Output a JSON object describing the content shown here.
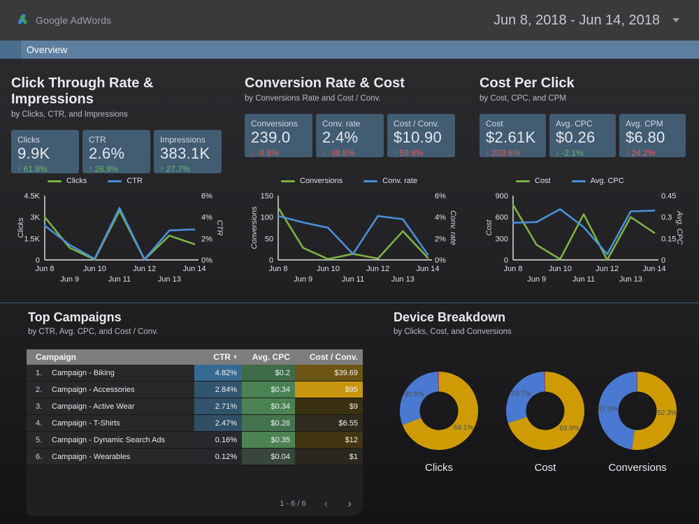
{
  "header": {
    "logo_text": "Google AdWords",
    "date_range": "Jun 8, 2018 - Jun 14, 2018"
  },
  "nav": {
    "tab": "Overview"
  },
  "sections": [
    {
      "title": "Click Through Rate & Impressions",
      "subtitle": "by Clicks, CTR, and Impressions",
      "scorecards": [
        {
          "label": "Clicks",
          "value": "9.9K",
          "arrow": "↑",
          "delta": "61.9%",
          "delta_color": "#66bb6a"
        },
        {
          "label": "CTR",
          "value": "2.6%",
          "arrow": "↑",
          "delta": "26.9%",
          "delta_color": "#66bb6a"
        },
        {
          "label": "Impressions",
          "value": "383.1K",
          "arrow": "↑",
          "delta": "27.7%",
          "delta_color": "#66bb6a"
        }
      ]
    },
    {
      "title": "Conversion Rate & Cost",
      "subtitle": "by Conversions Rate and Cost / Conv.",
      "scorecards": [
        {
          "label": "Conversions",
          "value": "239.0",
          "arrow": "↓",
          "delta": "-0.8%",
          "delta_color": "#e25d52"
        },
        {
          "label": "Conv. rate",
          "value": "2.4%",
          "arrow": "↓",
          "delta": "-38.8%",
          "delta_color": "#e25d52"
        },
        {
          "label": "Cost / Conv.",
          "value": "$10.90",
          "arrow": "↑",
          "delta": "59.9%",
          "delta_color": "#e25d52"
        }
      ]
    },
    {
      "title": "Cost Per Click",
      "subtitle": "by Cost, CPC, and CPM",
      "scorecards": [
        {
          "label": "Cost",
          "value": "$2.61K",
          "arrow": "↑",
          "delta": "203.6%",
          "delta_color": "#e25d52"
        },
        {
          "label": "Avg. CPC",
          "value": "$0.26",
          "arrow": "↓",
          "delta": "-2.1%",
          "delta_color": "#66bb6a"
        },
        {
          "label": "Avg. CPM",
          "value": "$6.80",
          "arrow": "↑",
          "delta": "24.2%",
          "delta_color": "#e25d52"
        }
      ]
    }
  ],
  "chart_data": [
    {
      "type": "line",
      "categories": [
        "Jun 8",
        "Jun 9",
        "Jun 10",
        "Jun 11",
        "Jun 12",
        "Jun 13",
        "Jun 14"
      ],
      "left_axis": {
        "label": "Clicks",
        "max": 4500,
        "ticks": [
          "0",
          "1.5K",
          "3K",
          "4.5K"
        ]
      },
      "right_axis": {
        "label": "CTR",
        "max": 6,
        "ticks": [
          "0%",
          "2%",
          "4%",
          "6%"
        ]
      },
      "series": [
        {
          "name": "Clicks",
          "axis": "left",
          "color": "#7cb342",
          "values": [
            3000,
            850,
            30,
            3450,
            30,
            1700,
            1100
          ]
        },
        {
          "name": "CTR",
          "axis": "right",
          "color": "#4a90d9",
          "values": [
            3.2,
            1.4,
            0.1,
            4.85,
            0.05,
            2.75,
            2.85
          ]
        }
      ]
    },
    {
      "type": "line",
      "categories": [
        "Jun 8",
        "Jun 9",
        "Jun 10",
        "Jun 11",
        "Jun 12",
        "Jun 13",
        "Jun 14"
      ],
      "left_axis": {
        "label": "Conversions",
        "max": 150,
        "ticks": [
          "0",
          "50",
          "100",
          "150"
        ]
      },
      "right_axis": {
        "label": "Conv. rate",
        "max": 6,
        "ticks": [
          "0%",
          "2%",
          "4%",
          "6%"
        ]
      },
      "series": [
        {
          "name": "Conversions",
          "axis": "left",
          "color": "#7cb342",
          "values": [
            122,
            28,
            2,
            14,
            3,
            67,
            5
          ]
        },
        {
          "name": "Conv. rate",
          "axis": "right",
          "color": "#4a90d9",
          "values": [
            4.1,
            3.5,
            3.0,
            0.55,
            4.1,
            3.8,
            0.5
          ]
        }
      ]
    },
    {
      "type": "line",
      "categories": [
        "Jun 8",
        "Jun 9",
        "Jun 10",
        "Jun 11",
        "Jun 12",
        "Jun 13",
        "Jun 14"
      ],
      "left_axis": {
        "label": "Cost",
        "max": 900,
        "ticks": [
          "0",
          "300",
          "600",
          "900"
        ]
      },
      "right_axis": {
        "label": "Avg. CPC",
        "max": 0.45,
        "ticks": [
          "0",
          "0.15",
          "0.3",
          "0.45"
        ]
      },
      "series": [
        {
          "name": "Cost",
          "axis": "left",
          "color": "#7cb342",
          "values": [
            770,
            210,
            10,
            640,
            0,
            600,
            380
          ]
        },
        {
          "name": "Avg. CPC",
          "axis": "right",
          "color": "#4a90d9",
          "values": [
            0.26,
            0.265,
            0.355,
            0.23,
            0.04,
            0.34,
            0.345
          ]
        }
      ]
    },
    {
      "type": "pie",
      "title": "Clicks",
      "slices": [
        {
          "value": 69.1,
          "label": "69.1%",
          "color": "#cf9b04"
        },
        {
          "value": 30.5,
          "label": "30.5%",
          "color": "#4a79d1"
        },
        {
          "value": 0.4,
          "label": "",
          "color": "#bf4330"
        }
      ]
    },
    {
      "type": "pie",
      "title": "Cost",
      "slices": [
        {
          "value": 69.9,
          "label": "69.9%",
          "color": "#cf9b04"
        },
        {
          "value": 29.7,
          "label": "29.7%",
          "color": "#4a79d1"
        },
        {
          "value": 0.4,
          "label": "",
          "color": "#bf4330"
        }
      ]
    },
    {
      "type": "pie",
      "title": "Conversions",
      "slices": [
        {
          "value": 52.3,
          "label": "52.3%",
          "color": "#cf9b04"
        },
        {
          "value": 47.3,
          "label": "47.3%",
          "color": "#4a79d1"
        },
        {
          "value": 0.4,
          "label": "",
          "color": "#bf4330"
        }
      ]
    }
  ],
  "top_campaigns": {
    "title": "Top Campaigns",
    "subtitle": "by CTR, Avg. CPC, and Cost / Conv.",
    "columns": {
      "campaign": "Campaign",
      "ctr": "CTR",
      "sort_caret": "▾",
      "cpc": "Avg. CPC",
      "cost_conv": "Cost / Conv."
    },
    "rows": [
      {
        "index": "1.",
        "name": "Campaign - Biking",
        "ctr": "4.82%",
        "cpc": "$0.2",
        "cost_conv": "$39.69",
        "ctr_bg": "#366a91",
        "cpc_bg": "#3f6b48",
        "cc_bg": "#6d5513"
      },
      {
        "index": "2.",
        "name": "Campaign - Accessories",
        "ctr": "2.84%",
        "cpc": "$0.34",
        "cost_conv": "$95",
        "ctr_bg": "#32556e",
        "cpc_bg": "#4b8253",
        "cc_bg": "#c8960f"
      },
      {
        "index": "3.",
        "name": "Campaign - Active Wear",
        "ctr": "2.71%",
        "cpc": "$0.34",
        "cost_conv": "$9",
        "ctr_bg": "#31536b",
        "cpc_bg": "#4b8253",
        "cc_bg": "#3a3110"
      },
      {
        "index": "4.",
        "name": "Campaign - T-Shirts",
        "ctr": "2.47%",
        "cpc": "$0.26",
        "cost_conv": "$6.55",
        "ctr_bg": "#304e64",
        "cpc_bg": "#44744d",
        "cc_bg": "#2e2b1e"
      },
      {
        "index": "5.",
        "name": "Campaign - Dynamic Search Ads",
        "ctr": "0.16%",
        "cpc": "$0.35",
        "cost_conv": "$12",
        "ctr_bg": "#27292e",
        "cpc_bg": "#4c8454",
        "cc_bg": "#413611"
      },
      {
        "index": "6.",
        "name": "Campaign - Wearables",
        "ctr": "0.12%",
        "cpc": "$0.04",
        "cost_conv": "$1",
        "ctr_bg": "#26282d",
        "cpc_bg": "#37473c",
        "cc_bg": "#2a281e"
      }
    ],
    "pagination": {
      "range": "1 - 6 / 6",
      "prev": "‹",
      "next": "›"
    }
  },
  "device_breakdown": {
    "title": "Device Breakdown",
    "subtitle": "by Clicks, Cost, and Conversions"
  }
}
